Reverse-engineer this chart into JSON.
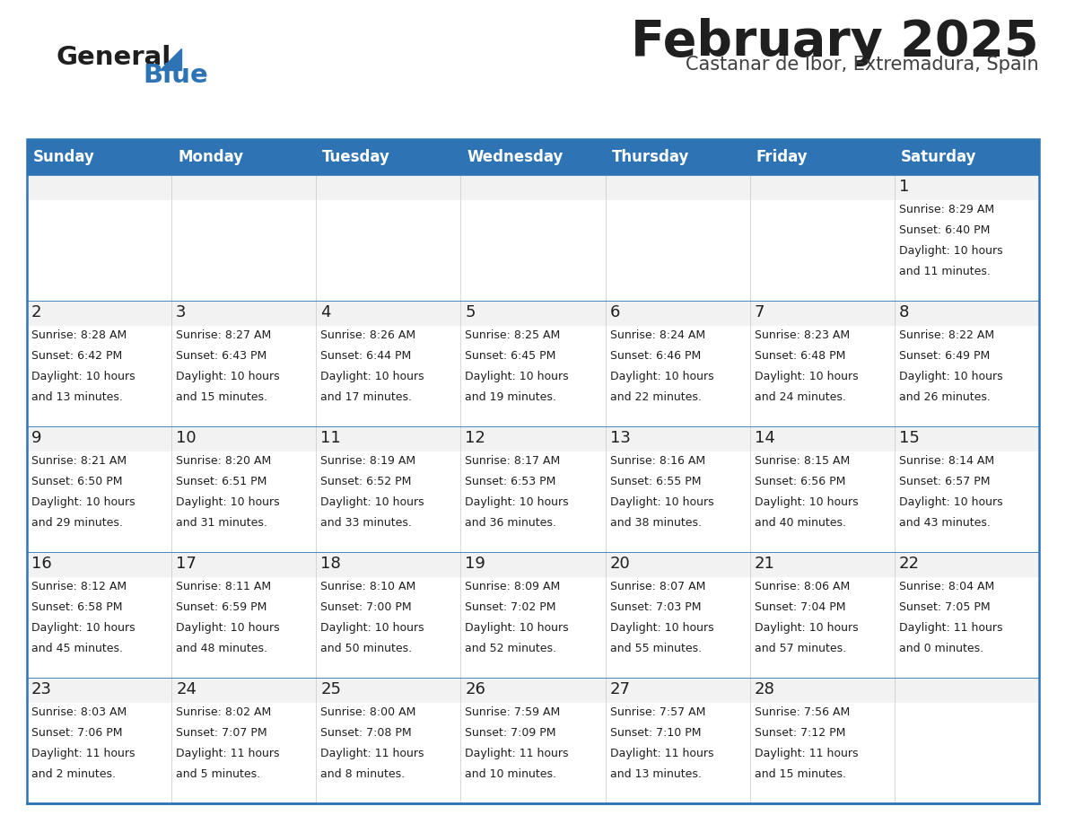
{
  "title": "February 2025",
  "subtitle": "Castanar de Ibor, Extremadura, Spain",
  "header_color": "#2e74b5",
  "header_text_color": "#ffffff",
  "cell_bg_light": "#f2f2f2",
  "cell_bg_white": "#ffffff",
  "border_color": "#2e74b5",
  "days_of_week": [
    "Sunday",
    "Monday",
    "Tuesday",
    "Wednesday",
    "Thursday",
    "Friday",
    "Saturday"
  ],
  "calendar_data": [
    [
      {
        "day": "",
        "sunrise": "",
        "sunset": "",
        "daylight": ""
      },
      {
        "day": "",
        "sunrise": "",
        "sunset": "",
        "daylight": ""
      },
      {
        "day": "",
        "sunrise": "",
        "sunset": "",
        "daylight": ""
      },
      {
        "day": "",
        "sunrise": "",
        "sunset": "",
        "daylight": ""
      },
      {
        "day": "",
        "sunrise": "",
        "sunset": "",
        "daylight": ""
      },
      {
        "day": "",
        "sunrise": "",
        "sunset": "",
        "daylight": ""
      },
      {
        "day": "1",
        "sunrise": "Sunrise: 8:29 AM",
        "sunset": "Sunset: 6:40 PM",
        "daylight": "Daylight: 10 hours\nand 11 minutes."
      }
    ],
    [
      {
        "day": "2",
        "sunrise": "Sunrise: 8:28 AM",
        "sunset": "Sunset: 6:42 PM",
        "daylight": "Daylight: 10 hours\nand 13 minutes."
      },
      {
        "day": "3",
        "sunrise": "Sunrise: 8:27 AM",
        "sunset": "Sunset: 6:43 PM",
        "daylight": "Daylight: 10 hours\nand 15 minutes."
      },
      {
        "day": "4",
        "sunrise": "Sunrise: 8:26 AM",
        "sunset": "Sunset: 6:44 PM",
        "daylight": "Daylight: 10 hours\nand 17 minutes."
      },
      {
        "day": "5",
        "sunrise": "Sunrise: 8:25 AM",
        "sunset": "Sunset: 6:45 PM",
        "daylight": "Daylight: 10 hours\nand 19 minutes."
      },
      {
        "day": "6",
        "sunrise": "Sunrise: 8:24 AM",
        "sunset": "Sunset: 6:46 PM",
        "daylight": "Daylight: 10 hours\nand 22 minutes."
      },
      {
        "day": "7",
        "sunrise": "Sunrise: 8:23 AM",
        "sunset": "Sunset: 6:48 PM",
        "daylight": "Daylight: 10 hours\nand 24 minutes."
      },
      {
        "day": "8",
        "sunrise": "Sunrise: 8:22 AM",
        "sunset": "Sunset: 6:49 PM",
        "daylight": "Daylight: 10 hours\nand 26 minutes."
      }
    ],
    [
      {
        "day": "9",
        "sunrise": "Sunrise: 8:21 AM",
        "sunset": "Sunset: 6:50 PM",
        "daylight": "Daylight: 10 hours\nand 29 minutes."
      },
      {
        "day": "10",
        "sunrise": "Sunrise: 8:20 AM",
        "sunset": "Sunset: 6:51 PM",
        "daylight": "Daylight: 10 hours\nand 31 minutes."
      },
      {
        "day": "11",
        "sunrise": "Sunrise: 8:19 AM",
        "sunset": "Sunset: 6:52 PM",
        "daylight": "Daylight: 10 hours\nand 33 minutes."
      },
      {
        "day": "12",
        "sunrise": "Sunrise: 8:17 AM",
        "sunset": "Sunset: 6:53 PM",
        "daylight": "Daylight: 10 hours\nand 36 minutes."
      },
      {
        "day": "13",
        "sunrise": "Sunrise: 8:16 AM",
        "sunset": "Sunset: 6:55 PM",
        "daylight": "Daylight: 10 hours\nand 38 minutes."
      },
      {
        "day": "14",
        "sunrise": "Sunrise: 8:15 AM",
        "sunset": "Sunset: 6:56 PM",
        "daylight": "Daylight: 10 hours\nand 40 minutes."
      },
      {
        "day": "15",
        "sunrise": "Sunrise: 8:14 AM",
        "sunset": "Sunset: 6:57 PM",
        "daylight": "Daylight: 10 hours\nand 43 minutes."
      }
    ],
    [
      {
        "day": "16",
        "sunrise": "Sunrise: 8:12 AM",
        "sunset": "Sunset: 6:58 PM",
        "daylight": "Daylight: 10 hours\nand 45 minutes."
      },
      {
        "day": "17",
        "sunrise": "Sunrise: 8:11 AM",
        "sunset": "Sunset: 6:59 PM",
        "daylight": "Daylight: 10 hours\nand 48 minutes."
      },
      {
        "day": "18",
        "sunrise": "Sunrise: 8:10 AM",
        "sunset": "Sunset: 7:00 PM",
        "daylight": "Daylight: 10 hours\nand 50 minutes."
      },
      {
        "day": "19",
        "sunrise": "Sunrise: 8:09 AM",
        "sunset": "Sunset: 7:02 PM",
        "daylight": "Daylight: 10 hours\nand 52 minutes."
      },
      {
        "day": "20",
        "sunrise": "Sunrise: 8:07 AM",
        "sunset": "Sunset: 7:03 PM",
        "daylight": "Daylight: 10 hours\nand 55 minutes."
      },
      {
        "day": "21",
        "sunrise": "Sunrise: 8:06 AM",
        "sunset": "Sunset: 7:04 PM",
        "daylight": "Daylight: 10 hours\nand 57 minutes."
      },
      {
        "day": "22",
        "sunrise": "Sunrise: 8:04 AM",
        "sunset": "Sunset: 7:05 PM",
        "daylight": "Daylight: 11 hours\nand 0 minutes."
      }
    ],
    [
      {
        "day": "23",
        "sunrise": "Sunrise: 8:03 AM",
        "sunset": "Sunset: 7:06 PM",
        "daylight": "Daylight: 11 hours\nand 2 minutes."
      },
      {
        "day": "24",
        "sunrise": "Sunrise: 8:02 AM",
        "sunset": "Sunset: 7:07 PM",
        "daylight": "Daylight: 11 hours\nand 5 minutes."
      },
      {
        "day": "25",
        "sunrise": "Sunrise: 8:00 AM",
        "sunset": "Sunset: 7:08 PM",
        "daylight": "Daylight: 11 hours\nand 8 minutes."
      },
      {
        "day": "26",
        "sunrise": "Sunrise: 7:59 AM",
        "sunset": "Sunset: 7:09 PM",
        "daylight": "Daylight: 11 hours\nand 10 minutes."
      },
      {
        "day": "27",
        "sunrise": "Sunrise: 7:57 AM",
        "sunset": "Sunset: 7:10 PM",
        "daylight": "Daylight: 11 hours\nand 13 minutes."
      },
      {
        "day": "28",
        "sunrise": "Sunrise: 7:56 AM",
        "sunset": "Sunset: 7:12 PM",
        "daylight": "Daylight: 11 hours\nand 15 minutes."
      },
      {
        "day": "",
        "sunrise": "",
        "sunset": "",
        "daylight": ""
      }
    ]
  ],
  "title_fontsize": 40,
  "subtitle_fontsize": 15,
  "header_fontsize": 12,
  "day_number_fontsize": 13,
  "cell_text_fontsize": 9
}
